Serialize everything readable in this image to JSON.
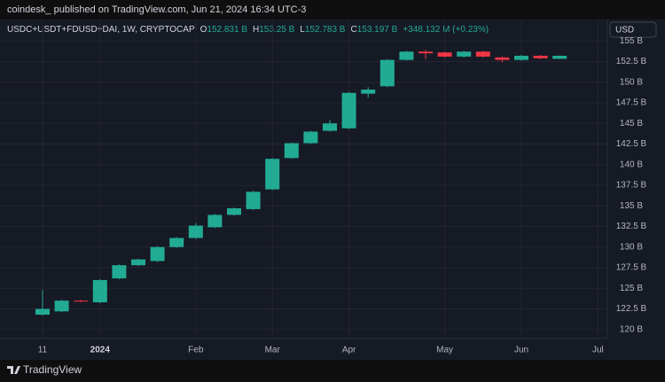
{
  "header": "coindesk_ published on TradingView.com, Jun 21, 2024 16:34 UTC-3",
  "footer": "TradingView",
  "chart_data": {
    "type": "candlestick",
    "symbol": "USDC+USDT+FDUSD+DAI, 1W, CRYPTOCAP",
    "ohlc_legend": [
      {
        "label": "O",
        "value": "152.831 B"
      },
      {
        "label": "H",
        "value": "153.25 B"
      },
      {
        "label": "L",
        "value": "152.783 B"
      },
      {
        "label": "C",
        "value": "153.197 B"
      }
    ],
    "change": "+348.132 M (+0.23%)",
    "currency": "USD",
    "up_color": "#22ab94",
    "down_color": "#f23645",
    "grid": true,
    "categories": [
      "11",
      null,
      null,
      "2024",
      null,
      null,
      null,
      null,
      "Feb",
      null,
      null,
      null,
      "Mar",
      null,
      null,
      null,
      "Apr",
      null,
      null,
      null,
      null,
      "May",
      null,
      null,
      null,
      "Jun",
      null,
      null,
      null,
      "Jul"
    ],
    "open": [
      121.8,
      122.2,
      123.5,
      123.3,
      126.2,
      127.8,
      128.3,
      130.0,
      131.1,
      132.4,
      133.9,
      134.6,
      137.0,
      140.8,
      142.6,
      144.1,
      144.4,
      148.6,
      149.5,
      152.7,
      153.7,
      153.6,
      153.1,
      153.7,
      153.0,
      152.7,
      153.2,
      152.831,
      null,
      null
    ],
    "high": [
      124.8,
      123.6,
      123.6,
      126.1,
      127.9,
      128.6,
      130.1,
      131.2,
      132.9,
      134.0,
      134.8,
      136.8,
      140.8,
      142.7,
      144.1,
      145.4,
      148.8,
      149.4,
      152.8,
      153.8,
      153.9,
      153.7,
      153.8,
      153.8,
      153.1,
      153.3,
      153.3,
      153.25,
      null,
      null
    ],
    "low": [
      121.7,
      122.1,
      123.3,
      123.2,
      126.1,
      127.7,
      128.2,
      129.9,
      131.0,
      132.3,
      133.8,
      134.5,
      136.9,
      140.7,
      142.5,
      144.0,
      144.3,
      148.1,
      149.4,
      152.6,
      152.8,
      153.0,
      153.0,
      153.0,
      152.4,
      152.6,
      152.8,
      152.783,
      null,
      null
    ],
    "close": [
      122.5,
      123.5,
      123.4,
      126.0,
      127.8,
      128.5,
      130.0,
      131.1,
      132.6,
      133.9,
      134.7,
      136.7,
      140.7,
      142.6,
      144.0,
      145.0,
      148.7,
      149.1,
      152.7,
      153.7,
      153.5,
      153.1,
      153.7,
      153.1,
      152.7,
      153.2,
      152.9,
      153.197,
      null,
      null
    ],
    "ylim": [
      118.9,
      157.6
    ],
    "yticks": [
      {
        "value": 120,
        "label": "120 B"
      },
      {
        "value": 122.5,
        "label": "122.5 B"
      },
      {
        "value": 125,
        "label": "125 B"
      },
      {
        "value": 127.5,
        "label": "127.5 B"
      },
      {
        "value": 130,
        "label": "130 B"
      },
      {
        "value": 132.5,
        "label": "132.5 B"
      },
      {
        "value": 135,
        "label": "135 B"
      },
      {
        "value": 137.5,
        "label": "137.5 B"
      },
      {
        "value": 140,
        "label": "140 B"
      },
      {
        "value": 142.5,
        "label": "142.5 B"
      },
      {
        "value": 145,
        "label": "145 B"
      },
      {
        "value": 147.5,
        "label": "147.5 B"
      },
      {
        "value": 150,
        "label": "150 B"
      },
      {
        "value": 152.5,
        "label": "152.5 B"
      },
      {
        "value": 155,
        "label": "155 B"
      }
    ]
  }
}
